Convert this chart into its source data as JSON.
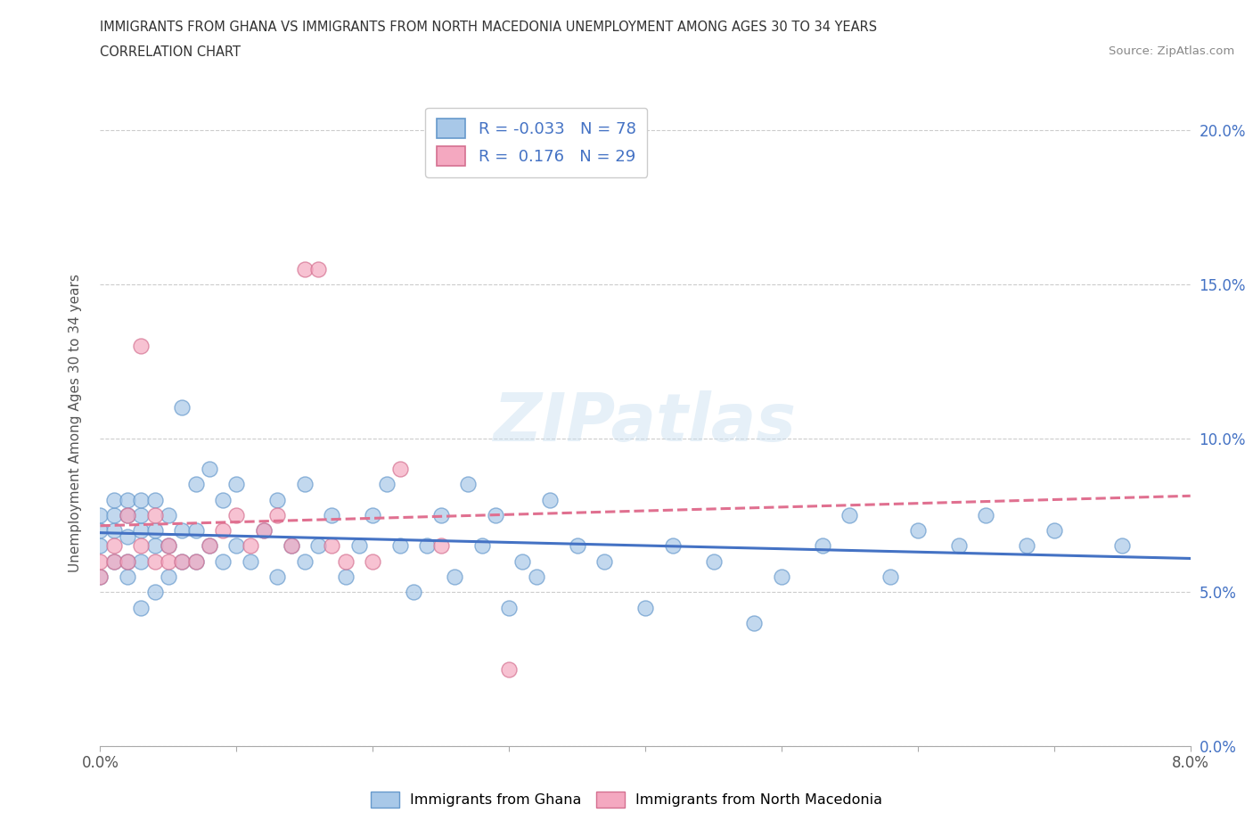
{
  "title_line1": "IMMIGRANTS FROM GHANA VS IMMIGRANTS FROM NORTH MACEDONIA UNEMPLOYMENT AMONG AGES 30 TO 34 YEARS",
  "title_line2": "CORRELATION CHART",
  "source": "Source: ZipAtlas.com",
  "ylabel": "Unemployment Among Ages 30 to 34 years",
  "xlim": [
    0.0,
    0.08
  ],
  "ylim": [
    0.0,
    0.21
  ],
  "xticks": [
    0.0,
    0.01,
    0.02,
    0.03,
    0.04,
    0.05,
    0.06,
    0.07,
    0.08
  ],
  "yticks": [
    0.0,
    0.05,
    0.1,
    0.15,
    0.2
  ],
  "ghana_R": -0.033,
  "ghana_N": 78,
  "macedonia_R": 0.176,
  "macedonia_N": 29,
  "ghana_color": "#a8c8e8",
  "macedonia_color": "#f4a8c0",
  "ghana_edge_color": "#6699cc",
  "macedonia_edge_color": "#d47090",
  "ghana_line_color": "#4472c4",
  "macedonia_line_color": "#e07090",
  "watermark": "ZIPatlas",
  "ghana_points_x": [
    0.0,
    0.0,
    0.0,
    0.0,
    0.001,
    0.001,
    0.001,
    0.001,
    0.002,
    0.002,
    0.002,
    0.002,
    0.002,
    0.003,
    0.003,
    0.003,
    0.003,
    0.003,
    0.004,
    0.004,
    0.004,
    0.004,
    0.005,
    0.005,
    0.005,
    0.006,
    0.006,
    0.006,
    0.007,
    0.007,
    0.007,
    0.008,
    0.008,
    0.009,
    0.009,
    0.01,
    0.01,
    0.011,
    0.012,
    0.013,
    0.013,
    0.014,
    0.015,
    0.015,
    0.016,
    0.017,
    0.018,
    0.019,
    0.02,
    0.021,
    0.022,
    0.023,
    0.024,
    0.025,
    0.026,
    0.027,
    0.028,
    0.029,
    0.03,
    0.031,
    0.032,
    0.033,
    0.035,
    0.037,
    0.04,
    0.042,
    0.045,
    0.048,
    0.05,
    0.053,
    0.055,
    0.058,
    0.06,
    0.063,
    0.065,
    0.068,
    0.07,
    0.075
  ],
  "ghana_points_y": [
    0.065,
    0.07,
    0.075,
    0.055,
    0.06,
    0.07,
    0.075,
    0.08,
    0.06,
    0.068,
    0.075,
    0.08,
    0.055,
    0.06,
    0.07,
    0.075,
    0.08,
    0.045,
    0.065,
    0.07,
    0.08,
    0.05,
    0.065,
    0.075,
    0.055,
    0.06,
    0.07,
    0.11,
    0.06,
    0.07,
    0.085,
    0.065,
    0.09,
    0.06,
    0.08,
    0.065,
    0.085,
    0.06,
    0.07,
    0.055,
    0.08,
    0.065,
    0.06,
    0.085,
    0.065,
    0.075,
    0.055,
    0.065,
    0.075,
    0.085,
    0.065,
    0.05,
    0.065,
    0.075,
    0.055,
    0.085,
    0.065,
    0.075,
    0.045,
    0.06,
    0.055,
    0.08,
    0.065,
    0.06,
    0.045,
    0.065,
    0.06,
    0.04,
    0.055,
    0.065,
    0.075,
    0.055,
    0.07,
    0.065,
    0.075,
    0.065,
    0.07,
    0.065
  ],
  "macedonia_points_x": [
    0.0,
    0.0,
    0.001,
    0.001,
    0.002,
    0.002,
    0.003,
    0.003,
    0.004,
    0.004,
    0.005,
    0.005,
    0.006,
    0.007,
    0.008,
    0.009,
    0.01,
    0.011,
    0.012,
    0.013,
    0.014,
    0.015,
    0.016,
    0.017,
    0.018,
    0.02,
    0.022,
    0.025,
    0.03
  ],
  "macedonia_points_y": [
    0.055,
    0.06,
    0.06,
    0.065,
    0.06,
    0.075,
    0.065,
    0.13,
    0.075,
    0.06,
    0.06,
    0.065,
    0.06,
    0.06,
    0.065,
    0.07,
    0.075,
    0.065,
    0.07,
    0.075,
    0.065,
    0.155,
    0.155,
    0.065,
    0.06,
    0.06,
    0.09,
    0.065,
    0.025
  ]
}
